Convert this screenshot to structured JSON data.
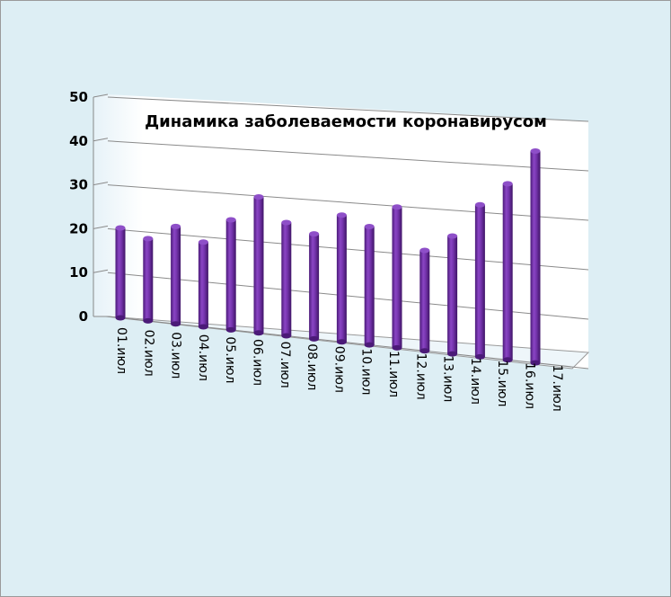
{
  "chart_data": {
    "type": "bar",
    "style": "3d-cylinder",
    "title": "Динамика заболеваемости коронавирусом",
    "categories": [
      "01.июл",
      "02.июл",
      "03.июл",
      "04.июл",
      "05.июл",
      "06.июл",
      "07.июл",
      "08.июл",
      "09.июл",
      "10.июл",
      "11.июл",
      "12.июл",
      "13.июл",
      "14.июл",
      "15.июл",
      "16.июл",
      "17.июл"
    ],
    "values": [
      20,
      18,
      21,
      18,
      23,
      28,
      23,
      21,
      25,
      23,
      27,
      19,
      22,
      28,
      32,
      38,
      null
    ],
    "ylim": [
      0,
      50
    ],
    "yticks": [
      "0",
      "10",
      "20",
      "30",
      "40",
      "50"
    ],
    "grid": true,
    "legend": "none",
    "colors": {
      "bar": "#7030a0",
      "background": "#ddeef4",
      "wall": "#ffffff"
    }
  }
}
